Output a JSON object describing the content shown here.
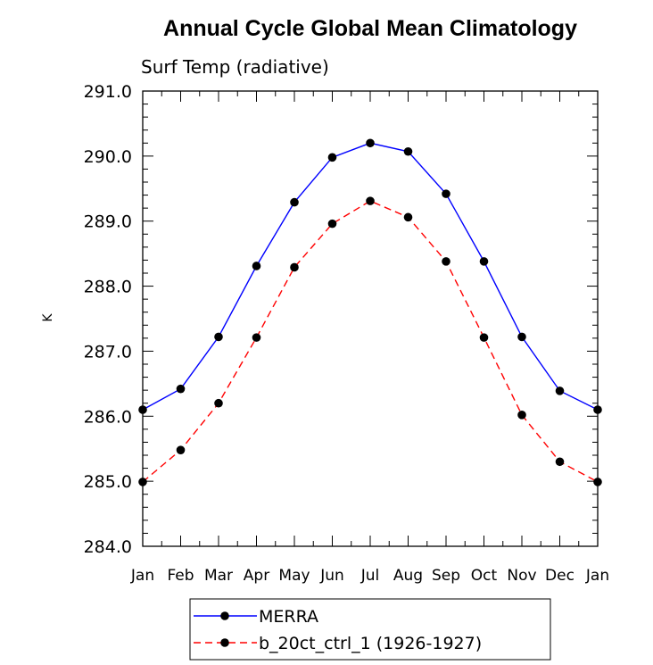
{
  "chart_data": {
    "type": "line",
    "title": "Annual Cycle Global Mean Climatology",
    "subtitle": "Surf Temp (radiative)",
    "xlabel": "",
    "ylabel": "K",
    "categories": [
      "Jan",
      "Feb",
      "Mar",
      "Apr",
      "May",
      "Jun",
      "Jul",
      "Aug",
      "Sep",
      "Oct",
      "Nov",
      "Dec",
      "Jan"
    ],
    "ylim": [
      284.0,
      291.0
    ],
    "yticks": [
      "284.0",
      "285.0",
      "286.0",
      "287.0",
      "288.0",
      "289.0",
      "290.0",
      "291.0"
    ],
    "grid": false,
    "legend_position": "bottom",
    "series": [
      {
        "name": "MERRA",
        "color": "#0000ff",
        "dash": "solid",
        "values": [
          286.1,
          286.42,
          287.22,
          288.31,
          289.29,
          289.98,
          290.2,
          290.07,
          289.42,
          288.38,
          287.22,
          286.39,
          286.1
        ]
      },
      {
        "name": "b_20ct_ctrl_1 (1926-1927)",
        "color": "#ff0000",
        "dash": "dashed",
        "values": [
          284.99,
          285.48,
          286.2,
          287.21,
          288.29,
          288.96,
          289.31,
          289.06,
          288.38,
          287.21,
          286.02,
          285.3,
          284.99
        ]
      }
    ]
  }
}
